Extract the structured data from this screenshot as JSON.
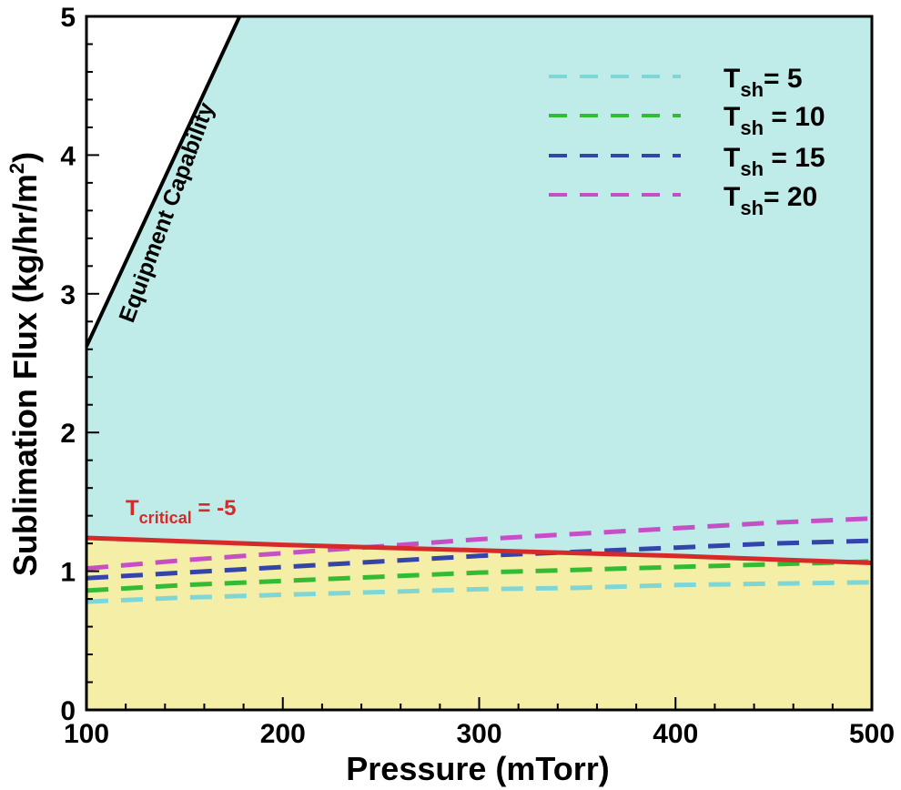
{
  "chart_data": {
    "type": "line",
    "xlabel": "Pressure (mTorr)",
    "ylabel_main": "Sublimation Flux (kg/hr/m",
    "ylabel_sup": "2",
    "ylabel_end": ")",
    "xlim": [
      100,
      500
    ],
    "ylim": [
      0,
      5
    ],
    "xticks": [
      "100",
      "200",
      "300",
      "400",
      "500"
    ],
    "yticks": [
      "0",
      "1",
      "2",
      "3",
      "4",
      "5"
    ],
    "grid": false,
    "legend_placement": "top-right",
    "regions": [
      {
        "name": "safe-region",
        "color": "#f4eea6"
      },
      {
        "name": "collapse-region",
        "color": "#bfece8"
      }
    ],
    "equipment_capability": {
      "label": "Equipment Capability",
      "x": [
        100,
        178
      ],
      "y": [
        2.62,
        5.0
      ],
      "color": "#000000"
    },
    "critical": {
      "label_main": "T",
      "label_sub": "critical",
      "label_end": " = -5",
      "x": [
        100,
        200,
        300,
        400,
        500
      ],
      "y": [
        1.24,
        1.19,
        1.15,
        1.11,
        1.06
      ],
      "color": "#d62a2a"
    },
    "series": [
      {
        "name_main": "T",
        "name_sub": "sh",
        "name_end": "= 5",
        "color": "#7fd6d6",
        "x": [
          100,
          150,
          200,
          250,
          300,
          350,
          400,
          450,
          500
        ],
        "y": [
          0.78,
          0.81,
          0.83,
          0.85,
          0.87,
          0.88,
          0.9,
          0.91,
          0.92
        ]
      },
      {
        "name_main": "T",
        "name_sub": "sh",
        "name_end": " = 10",
        "color": "#33bb33",
        "x": [
          100,
          150,
          200,
          250,
          300,
          350,
          400,
          450,
          500
        ],
        "y": [
          0.86,
          0.9,
          0.93,
          0.96,
          0.99,
          1.01,
          1.03,
          1.05,
          1.07
        ]
      },
      {
        "name_main": "T",
        "name_sub": "sh",
        "name_end": " = 15",
        "color": "#3344aa",
        "x": [
          100,
          150,
          200,
          250,
          300,
          350,
          400,
          450,
          500
        ],
        "y": [
          0.95,
          0.99,
          1.03,
          1.07,
          1.11,
          1.14,
          1.17,
          1.2,
          1.22
        ]
      },
      {
        "name_main": "T",
        "name_sub": "sh",
        "name_end": "= 20",
        "color": "#c64fc6",
        "x": [
          100,
          150,
          200,
          250,
          300,
          350,
          400,
          450,
          500
        ],
        "y": [
          1.02,
          1.08,
          1.13,
          1.18,
          1.23,
          1.27,
          1.31,
          1.35,
          1.38
        ]
      }
    ]
  }
}
